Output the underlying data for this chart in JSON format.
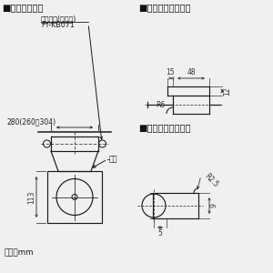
{
  "bg_color": "#f0f0f0",
  "line_color": "#1a1a1a",
  "dim_color": "#333333",
  "title_color": "#111111",
  "section_titles": [
    "■吊り金具位置",
    "■吊り金具穴詳細図",
    "■本体取付穴詳細図"
  ],
  "label_fykb_line1": "吊り金具(別売品)",
  "label_fykb_line2": "FY-KB071",
  "label_280": "280(260～304)",
  "label_hontai": "本体",
  "label_113": "113",
  "label_unit": "単位：mm",
  "label_48": "48",
  "label_15": "15",
  "label_12": "12",
  "label_R6": "R6",
  "label_R25": "R2.5",
  "label_9": "9",
  "label_5": "5"
}
